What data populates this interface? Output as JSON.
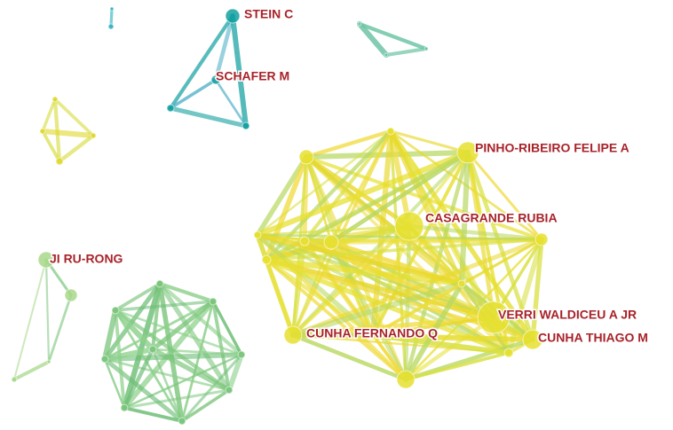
{
  "nodes": [
    {
      "label": "STEIN C"
    },
    {
      "label": "SCHAFER M"
    },
    {
      "label": "PINHO-RIBEIRO FELIPE A"
    },
    {
      "label": "CASAGRANDE RUBIA"
    },
    {
      "label": "JI RU-RONG"
    },
    {
      "label": "VERRI WALDICEU A JR"
    },
    {
      "label": "CUNHA FERNANDO Q"
    },
    {
      "label": "CUNHA THIAGO M"
    }
  ]
}
